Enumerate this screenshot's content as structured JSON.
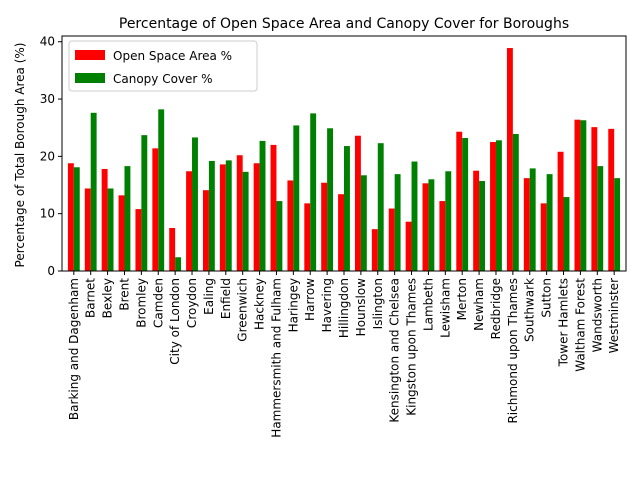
{
  "chart_data": {
    "type": "bar",
    "title": "Percentage of Open Space Area and Canopy Cover for Boroughs",
    "xlabel": "",
    "ylabel": "Percentage of Total Borough Area (%)",
    "ylim": [
      0,
      41
    ],
    "yticks": [
      0,
      10,
      20,
      30,
      40
    ],
    "grid": false,
    "legend_position": "top-left",
    "categories": [
      "Barking and Dagenham",
      "Barnet",
      "Bexley",
      "Brent",
      "Bromley",
      "Camden",
      "City of London",
      "Croydon",
      "Ealing",
      "Enfield",
      "Greenwich",
      "Hackney",
      "Hammersmith and Fulham",
      "Haringey",
      "Harrow",
      "Havering",
      "Hillingdon",
      "Hounslow",
      "Islington",
      "Kensington and Chelsea",
      "Kingston upon Thames",
      "Lambeth",
      "Lewisham",
      "Merton",
      "Newham",
      "Redbridge",
      "Richmond upon Thames",
      "Southwark",
      "Sutton",
      "Tower Hamlets",
      "Waltham Forest",
      "Wandsworth",
      "Westminster"
    ],
    "series": [
      {
        "name": "Open Space Area %",
        "color": "#ff0000",
        "values": [
          18.8,
          14.4,
          17.8,
          13.2,
          10.8,
          21.4,
          7.5,
          17.4,
          14.1,
          18.6,
          20.2,
          18.8,
          22.0,
          15.8,
          11.8,
          15.4,
          13.4,
          23.6,
          7.3,
          10.9,
          8.6,
          15.3,
          12.2,
          24.3,
          17.5,
          22.5,
          38.9,
          16.2,
          11.8,
          20.8,
          26.4,
          25.1,
          24.8
        ]
      },
      {
        "name": "Canopy Cover %",
        "color": "#008000",
        "values": [
          18.1,
          27.6,
          14.4,
          18.3,
          23.7,
          28.2,
          2.4,
          23.3,
          19.2,
          19.3,
          17.3,
          22.7,
          12.2,
          25.4,
          27.5,
          24.9,
          21.8,
          16.7,
          22.3,
          16.9,
          19.1,
          16.0,
          17.4,
          23.2,
          15.7,
          22.8,
          23.9,
          17.9,
          16.9,
          12.9,
          26.3,
          18.3,
          16.2
        ]
      }
    ]
  }
}
